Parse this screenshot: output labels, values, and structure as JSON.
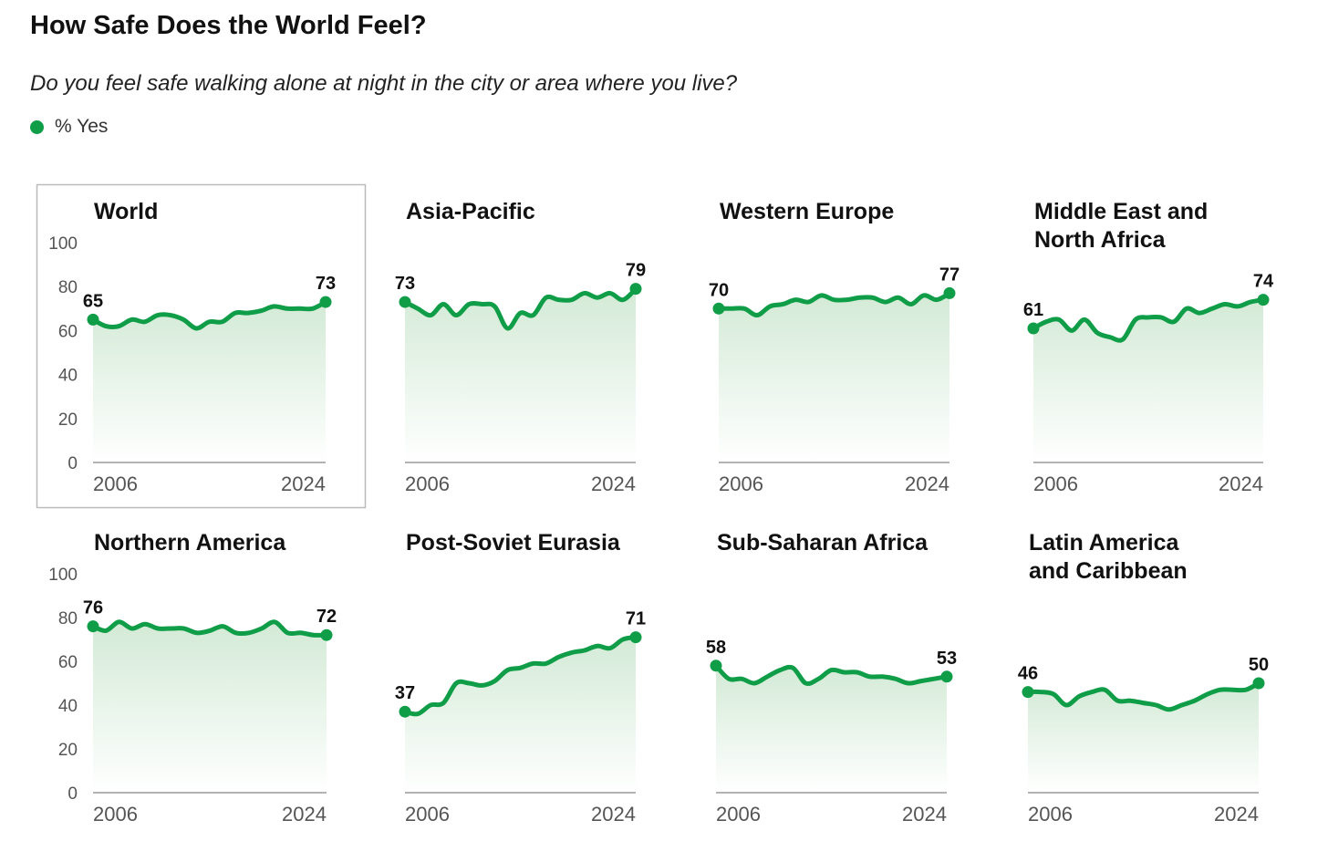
{
  "title": "How Safe Does the World Feel?",
  "subtitle": "Do you feel safe walking alone at night in the city or area where you live?",
  "legend_label": "% Yes",
  "colors": {
    "line": "#0f9d48",
    "fill_top": "#d3ead6"
  },
  "chart_data": {
    "type": "line",
    "title": "How Safe Does the World Feel?",
    "ylabel": "% Yes",
    "ylim": [
      0,
      100
    ],
    "yticks": [
      "0",
      "20",
      "40",
      "60",
      "80",
      "100"
    ],
    "x": [
      2006,
      2007,
      2008,
      2009,
      2010,
      2011,
      2012,
      2013,
      2014,
      2015,
      2016,
      2017,
      2018,
      2019,
      2020,
      2021,
      2022,
      2023,
      2024
    ],
    "xtick_labels": [
      "2006",
      "2024"
    ],
    "series": [
      {
        "name": "World",
        "start_label": "65",
        "end_label": "73",
        "values": [
          65,
          62,
          62,
          65,
          64,
          67,
          67,
          65,
          61,
          64,
          64,
          68,
          68,
          69,
          71,
          70,
          70,
          70,
          73
        ]
      },
      {
        "name": "Asia-Pacific",
        "start_label": "73",
        "end_label": "79",
        "values": [
          73,
          70,
          67,
          72,
          67,
          72,
          72,
          71,
          61,
          68,
          67,
          75,
          74,
          74,
          77,
          75,
          77,
          74,
          79
        ]
      },
      {
        "name": "Western Europe",
        "start_label": "70",
        "end_label": "77",
        "values": [
          70,
          70,
          70,
          67,
          71,
          72,
          74,
          73,
          76,
          74,
          74,
          75,
          75,
          73,
          75,
          72,
          76,
          74,
          77
        ]
      },
      {
        "name": "Middle East and North Africa",
        "title_lines": [
          "Middle East and",
          "North Africa"
        ],
        "start_label": "61",
        "end_label": "74",
        "values": [
          61,
          64,
          65,
          60,
          65,
          59,
          57,
          56,
          65,
          66,
          66,
          64,
          70,
          68,
          70,
          72,
          71,
          73,
          74
        ]
      },
      {
        "name": "Northern America",
        "start_label": "76",
        "end_label": "72",
        "values": [
          76,
          74,
          78,
          75,
          77,
          75,
          75,
          75,
          73,
          74,
          76,
          73,
          73,
          75,
          78,
          73,
          73,
          72,
          72
        ]
      },
      {
        "name": "Post-Soviet Eurasia",
        "start_label": "37",
        "end_label": "71",
        "values": [
          37,
          36,
          40,
          41,
          50,
          50,
          49,
          51,
          56,
          57,
          59,
          59,
          62,
          64,
          65,
          67,
          66,
          70,
          71
        ]
      },
      {
        "name": "Sub-Saharan Africa",
        "start_label": "58",
        "end_label": "53",
        "values": [
          58,
          52,
          52,
          50,
          53,
          56,
          57,
          50,
          52,
          56,
          55,
          55,
          53,
          53,
          52,
          50,
          51,
          52,
          53
        ]
      },
      {
        "name": "Latin America and Caribbean",
        "title_lines": [
          "Latin America",
          "and Caribbean"
        ],
        "start_label": "46",
        "end_label": "50",
        "values": [
          46,
          46,
          45,
          40,
          44,
          46,
          47,
          42,
          42,
          41,
          40,
          38,
          40,
          42,
          45,
          47,
          47,
          47,
          50
        ]
      }
    ]
  }
}
